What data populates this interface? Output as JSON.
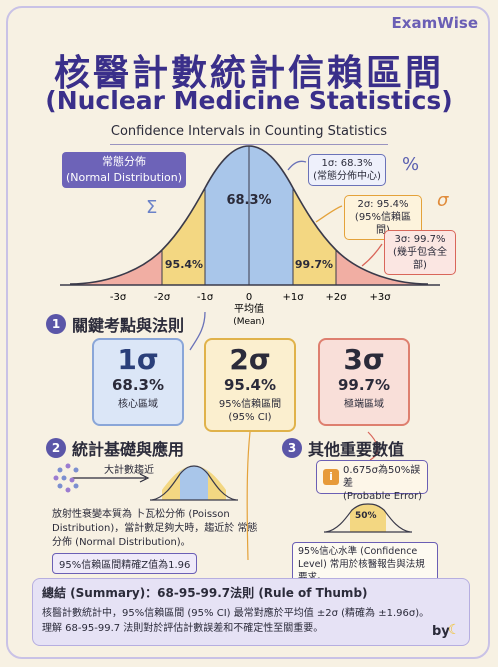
{
  "brand": "ExamWise",
  "title": "核醫計數統計信賴區間",
  "title_en": "(Nuclear Medicine Statistics)",
  "subtitle": "Confidence Intervals in Counting Statistics",
  "normal_tag": {
    "zh": "常態分佈",
    "en": "(Normal Distribution)"
  },
  "decor": {
    "sigma": "Σ",
    "percent": "%",
    "sigma_small": "σ"
  },
  "bell": {
    "center_pct": "68.3%",
    "mid_pct_left": "95.4%",
    "mid_pct_right": "99.7%",
    "ticks": [
      "-3σ",
      "-2σ",
      "-1σ",
      "0",
      "+1σ",
      "+2σ",
      "+3σ"
    ],
    "mean_zh": "平均值",
    "mean_en": "(Mean)",
    "colors": {
      "center": "#a9c6ea",
      "mid": "#f3d782",
      "tail": "#ef9e92"
    }
  },
  "notes": [
    {
      "line1": "1σ: 68.3%",
      "line2": "(常態分佈中心)"
    },
    {
      "line1": "2σ: 95.4%",
      "line2": "(95%信賴區間)"
    },
    {
      "line1": "3σ: 99.7%",
      "line2": "(幾乎包含全部)"
    }
  ],
  "section1": {
    "num": "1",
    "title": "關鍵考點與法則"
  },
  "cards": [
    {
      "big": "1σ",
      "pct": "68.3%",
      "label": "核心區域",
      "label2": ""
    },
    {
      "big": "2σ",
      "pct": "95.4%",
      "label": "95%信賴區間",
      "label2": "(95% CI)"
    },
    {
      "big": "3σ",
      "pct": "99.7%",
      "label": "極端區域",
      "label2": ""
    }
  ],
  "section2": {
    "num": "2",
    "title": "統計基礎與應用",
    "trend": "大計數趨近",
    "text": "放射性衰變本質為 卜瓦松分佈 (Poisson Distribution)，當計數足夠大時，趨近於 常態分佈 (Normal Distribution)。",
    "badge": "95%信賴區間精確Z值為1.96"
  },
  "section3": {
    "num": "3",
    "title": "其他重要數值",
    "pe_icon": "i",
    "pe_line1": "0.675σ為50%誤差",
    "pe_line2": "(Probable Error)",
    "mini_bell": "50%",
    "conf_text": "95%信心水準 (Confidence Level) 常用於核醫報告與法規要求。"
  },
  "summary": {
    "title": "總結 (Summary)：68-95-99.7法則 (Rule of Thumb)",
    "line1": "核醫計數統計中，95%信賴區間 (95% CI) 最常對應於平均值 ±2σ (精確為 ±1.96σ)。",
    "line2": "理解 68-95-99.7 法則對於評估計數誤差和不確定性至關重要。"
  },
  "by": "by"
}
